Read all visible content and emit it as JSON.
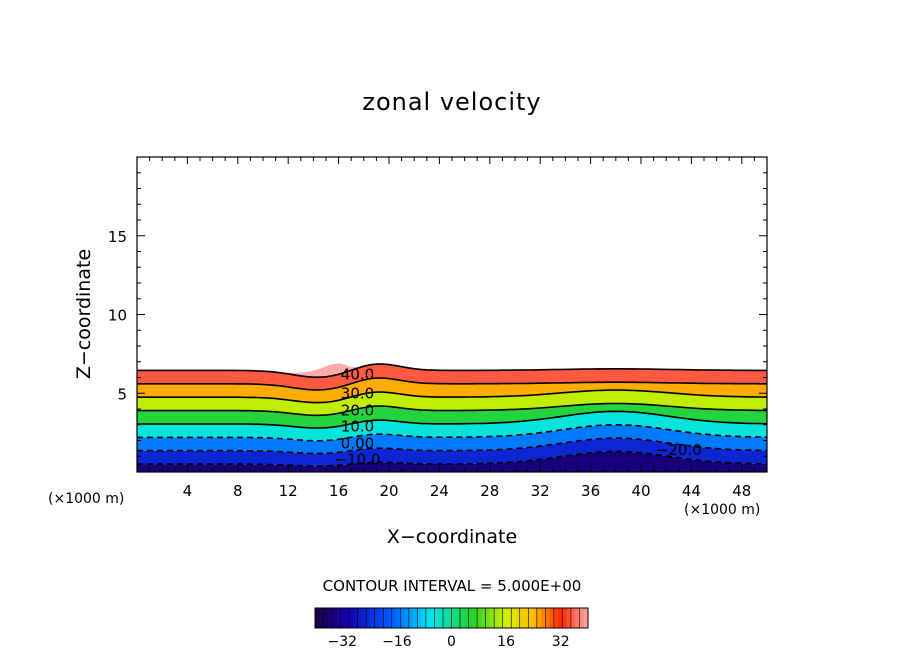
{
  "chart_data": {
    "type": "contour",
    "title": "zonal velocity",
    "xlabel": "X−coordinate",
    "ylabel": "Z−coordinate",
    "x_unit_label": "(×1000 m)",
    "z_unit_label": "(×1000 m)",
    "xlim": [
      0,
      50
    ],
    "ylim": [
      0,
      20
    ],
    "x_ticks": [
      4,
      8,
      12,
      16,
      20,
      24,
      28,
      32,
      36,
      40,
      44,
      48
    ],
    "y_ticks": [
      5,
      10,
      15
    ],
    "contour_interval_text": "CONTOUR INTERVAL = 5.000E+00",
    "contour_labels": [
      {
        "text": "40.0",
        "x": 17.5,
        "z": 6.2
      },
      {
        "text": "30.0",
        "x": 17.5,
        "z": 5.0
      },
      {
        "text": "20.0",
        "x": 17.5,
        "z": 3.9
      },
      {
        "text": "10.0",
        "x": 17.5,
        "z": 2.9
      },
      {
        "text": "0.00",
        "x": 17.5,
        "z": 1.8
      },
      {
        "text": "−10.0",
        "x": 17.5,
        "z": 0.8
      },
      {
        "text": "−20.0",
        "x": 43.0,
        "z": 1.4
      }
    ],
    "colorbar": {
      "min": -40,
      "max": 40,
      "ticks": [
        "−32",
        "−16",
        "0",
        "16",
        "32"
      ],
      "tick_values": [
        -32,
        -16,
        0,
        16,
        32
      ]
    },
    "grid": false
  }
}
